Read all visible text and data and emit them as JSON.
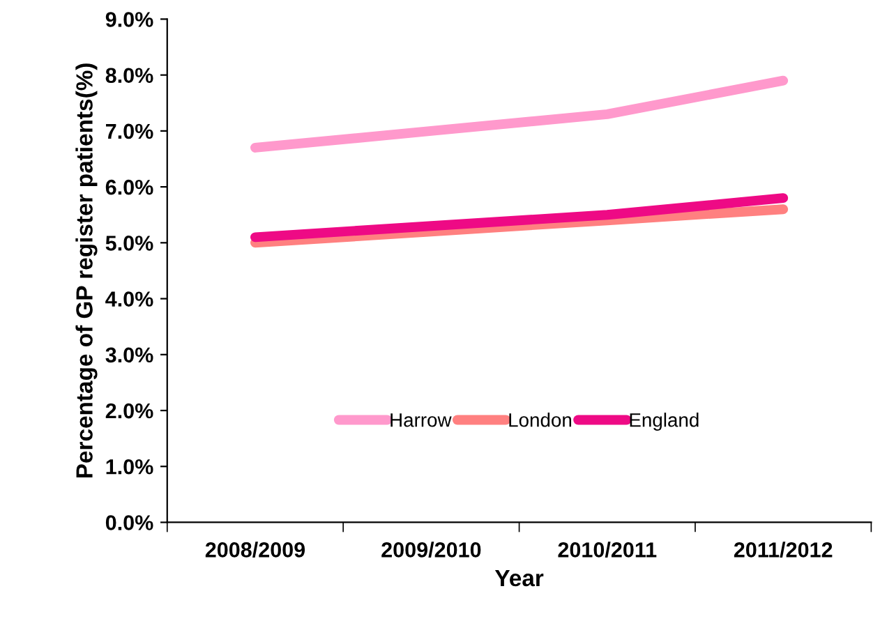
{
  "chart_data": {
    "type": "line",
    "xlabel": "Year",
    "ylabel": "Percentage of GP register patients(%)",
    "categories": [
      "2008/2009",
      "2009/2010",
      "2010/2011",
      "2011/2012"
    ],
    "series": [
      {
        "name": "Harrow",
        "color": "#ff99cc",
        "values": [
          6.7,
          7.0,
          7.3,
          7.9
        ]
      },
      {
        "name": "London",
        "color": "#ff8080",
        "values": [
          5.0,
          5.2,
          5.4,
          5.6
        ]
      },
      {
        "name": "England",
        "color": "#ee0a85",
        "values": [
          5.1,
          5.3,
          5.5,
          5.8
        ]
      }
    ],
    "ylim": [
      0,
      9
    ],
    "yticks": [
      {
        "value": 0,
        "label": "0.0%"
      },
      {
        "value": 1,
        "label": "1.0%"
      },
      {
        "value": 2,
        "label": "2.0%"
      },
      {
        "value": 3,
        "label": "3.0%"
      },
      {
        "value": 4,
        "label": "4.0%"
      },
      {
        "value": 5,
        "label": "5.0%"
      },
      {
        "value": 6,
        "label": "6.0%"
      },
      {
        "value": 7,
        "label": "7.0%"
      },
      {
        "value": 8,
        "label": "8.0%"
      },
      {
        "value": 9,
        "label": "9.0%"
      }
    ],
    "grid": false,
    "legend": "center",
    "marker": "none",
    "line_style": "solid"
  }
}
